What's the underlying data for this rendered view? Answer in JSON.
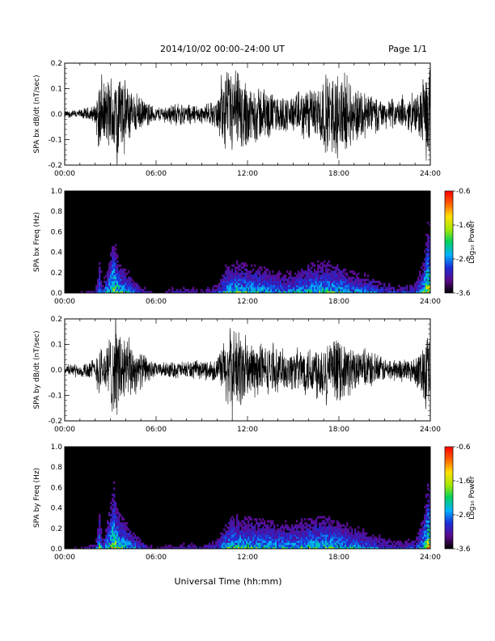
{
  "header": {
    "date_range": "2014/10/02   00:00–24:00 UT",
    "page": "Page 1/1"
  },
  "x_axis": {
    "title": "Universal Time (hh:mm)",
    "tick_labels": [
      "00:00",
      "06:00",
      "12:00",
      "18:00",
      "24:00"
    ],
    "range_hours": [
      0,
      24
    ]
  },
  "colorbar": {
    "label": "Log₁₀ Power",
    "tick_labels": [
      "-0.6",
      "-1.6",
      "-2.6",
      "-3.6"
    ],
    "range": [
      -3.6,
      -0.6
    ],
    "colors": [
      "#000000",
      "#5a0a8c",
      "#1c2cd8",
      "#00b4ff",
      "#00d060",
      "#a8e800",
      "#ffe000",
      "#ff6000",
      "#ff0000"
    ]
  },
  "chart_data": [
    {
      "type": "line",
      "ylabel": "SPA bx dB/dt (nT/sec)",
      "y_tick_labels": [
        "-0.2",
        "-0.1",
        "0.0",
        "0.1",
        "0.2"
      ],
      "ylim": [
        -0.2,
        0.2
      ],
      "xlim": [
        0,
        24
      ],
      "series": [
        {
          "x": [
            0,
            1,
            2,
            2.3,
            2.5,
            3.2,
            3.5,
            4,
            5,
            6,
            7,
            8,
            9,
            10,
            10.5,
            11,
            12,
            13,
            14,
            15,
            16,
            17,
            18,
            19,
            20,
            21,
            22,
            23,
            23.5,
            23.8,
            24
          ],
          "amplitude": [
            0.015,
            0.02,
            0.04,
            0.18,
            0.12,
            0.2,
            0.2,
            0.14,
            0.07,
            0.03,
            0.045,
            0.05,
            0.04,
            0.06,
            0.18,
            0.2,
            0.15,
            0.12,
            0.08,
            0.08,
            0.12,
            0.16,
            0.19,
            0.13,
            0.1,
            0.06,
            0.06,
            0.08,
            0.15,
            0.2,
            0.2
          ]
        }
      ]
    },
    {
      "type": "heatmap",
      "ylabel": "SPA bx Freq (Hz)",
      "y_tick_labels": [
        "0.0",
        "0.2",
        "0.4",
        "0.6",
        "0.8",
        "1.0"
      ],
      "ylim": [
        0,
        1
      ],
      "xlim": [
        0,
        24
      ],
      "x_hours": [
        0,
        1,
        2,
        2.3,
        2.5,
        3.2,
        3.5,
        4,
        5,
        6,
        7,
        8,
        9,
        10,
        10.5,
        11,
        12,
        13,
        14,
        15,
        16,
        17,
        18,
        19,
        20,
        21,
        22,
        23,
        23.5,
        23.8,
        24
      ],
      "activity": [
        0.1,
        0.12,
        0.2,
        0.65,
        0.35,
        0.85,
        0.65,
        0.55,
        0.3,
        0.12,
        0.22,
        0.25,
        0.2,
        0.32,
        0.55,
        0.62,
        0.6,
        0.58,
        0.5,
        0.5,
        0.6,
        0.62,
        0.6,
        0.5,
        0.45,
        0.35,
        0.3,
        0.35,
        0.6,
        0.9,
        0.9
      ]
    },
    {
      "type": "line",
      "ylabel": "SPA by dB/dt (nT/sec)",
      "y_tick_labels": [
        "-0.2",
        "-0.1",
        "0.0",
        "0.1",
        "0.2"
      ],
      "ylim": [
        -0.2,
        0.2
      ],
      "xlim": [
        0,
        24
      ],
      "series": [
        {
          "x": [
            0,
            1,
            2,
            2.3,
            2.5,
            3.2,
            3.5,
            4,
            5,
            6,
            7,
            8,
            9,
            10,
            10.5,
            11,
            12,
            13,
            14,
            15,
            16,
            17,
            18,
            19,
            20,
            21,
            22,
            23,
            23.5,
            23.8,
            24
          ],
          "amplitude": [
            0.02,
            0.03,
            0.05,
            0.13,
            0.08,
            0.2,
            0.2,
            0.15,
            0.08,
            0.03,
            0.035,
            0.04,
            0.04,
            0.05,
            0.14,
            0.2,
            0.14,
            0.11,
            0.09,
            0.09,
            0.11,
            0.14,
            0.13,
            0.1,
            0.08,
            0.05,
            0.05,
            0.06,
            0.12,
            0.2,
            0.2
          ]
        }
      ]
    },
    {
      "type": "heatmap",
      "ylabel": "SPA by Freq (Hz)",
      "y_tick_labels": [
        "0.0",
        "0.2",
        "0.4",
        "0.6",
        "0.8",
        "1.0"
      ],
      "ylim": [
        0,
        1
      ],
      "xlim": [
        0,
        24
      ],
      "x_hours": [
        0,
        1,
        2,
        2.3,
        2.5,
        3.2,
        3.5,
        4,
        5,
        6,
        7,
        8,
        9,
        10,
        10.5,
        11,
        12,
        13,
        14,
        15,
        16,
        17,
        18,
        19,
        20,
        21,
        22,
        23,
        23.5,
        23.8,
        24
      ],
      "activity": [
        0.12,
        0.14,
        0.25,
        0.7,
        0.35,
        0.9,
        0.7,
        0.6,
        0.35,
        0.14,
        0.22,
        0.25,
        0.22,
        0.35,
        0.55,
        0.65,
        0.62,
        0.6,
        0.56,
        0.56,
        0.62,
        0.64,
        0.6,
        0.52,
        0.45,
        0.35,
        0.3,
        0.35,
        0.6,
        0.9,
        0.9
      ]
    }
  ]
}
